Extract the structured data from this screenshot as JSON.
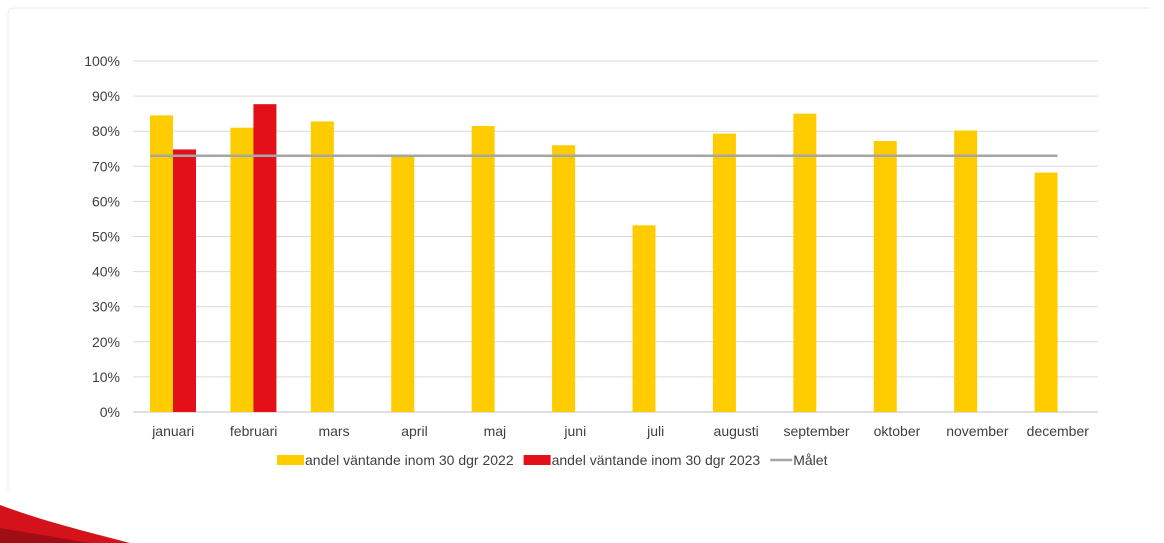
{
  "chart_data": {
    "type": "bar",
    "categories": [
      "januari",
      "februari",
      "mars",
      "april",
      "maj",
      "juni",
      "juli",
      "augusti",
      "september",
      "oktober",
      "november",
      "december"
    ],
    "series": [
      {
        "name": "andel väntande inom 30 dgr 2022",
        "color": "#FFCC00",
        "kind": "bar",
        "values": [
          84.5,
          81.0,
          82.8,
          73.0,
          81.5,
          76.0,
          53.2,
          79.3,
          85.0,
          77.2,
          80.2,
          68.2
        ]
      },
      {
        "name": "andel väntande inom 30 dgr 2023",
        "color": "#E3101A",
        "kind": "bar",
        "values": [
          74.8,
          87.7,
          null,
          null,
          null,
          null,
          null,
          null,
          null,
          null,
          null,
          null
        ]
      },
      {
        "name": "Målet",
        "color": "#A6A6A6",
        "kind": "line",
        "values": [
          73,
          73,
          73,
          73,
          73,
          73,
          73,
          73,
          73,
          73,
          73,
          73
        ]
      }
    ],
    "y_ticks": [
      "0%",
      "10%",
      "20%",
      "30%",
      "40%",
      "50%",
      "60%",
      "70%",
      "80%",
      "90%",
      "100%"
    ],
    "ylim": [
      0,
      100
    ],
    "grid": true,
    "legend_position": "bottom",
    "gridline_color": "#D9D9D9",
    "axis_color": "#BFBFBF"
  }
}
